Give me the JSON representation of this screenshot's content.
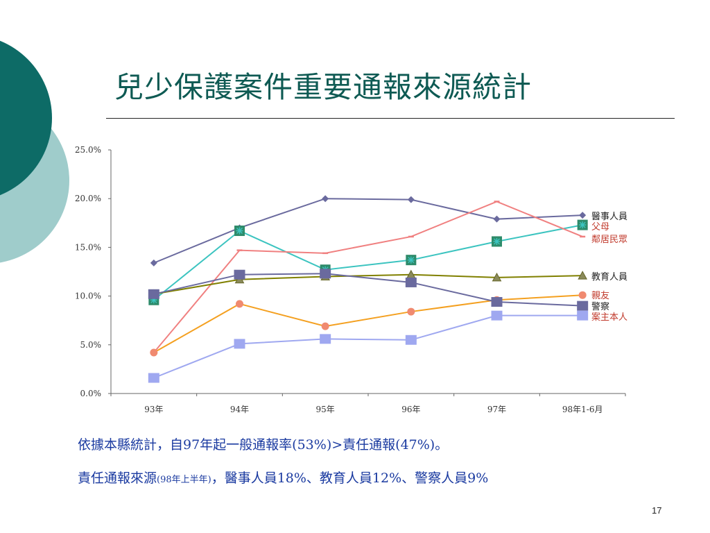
{
  "slide": {
    "title": "兒少保護案件重要通報來源統計",
    "notes": {
      "line1": "依據本縣統計，自97年起一般通報率(53%)>責任通報(47%)。",
      "line2_prefix": "責任通報來源",
      "line2_small": "(98年上半年)",
      "line2_suffix": "，醫事人員18%、教育人員12%、警察人員9%"
    },
    "page_number": "17",
    "colors": {
      "title": "#0e5a53",
      "notes": "#1a3aa0",
      "deco_dark": "#0d6b66",
      "deco_light": "#9fcccb"
    }
  },
  "chart_data": {
    "type": "line",
    "categories": [
      "93年",
      "94年",
      "95年",
      "96年",
      "97年",
      "98年1-6月"
    ],
    "ylim": [
      0,
      25
    ],
    "y_ticks": [
      "0.0%",
      "5.0%",
      "10.0%",
      "15.0%",
      "20.0%",
      "25.0%"
    ],
    "grid": false,
    "legend_position": "right, next to line ends",
    "series": [
      {
        "name": "醫事人員",
        "color": "#6a6a9e",
        "marker": "diamond",
        "label_color": "#222222",
        "values": [
          13.4,
          17.0,
          20.0,
          19.9,
          17.9,
          18.3
        ]
      },
      {
        "name": "父母",
        "color": "#3cc4c0",
        "marker": "star",
        "label_color": "#c0392b",
        "values": [
          9.6,
          16.7,
          12.7,
          13.7,
          15.6,
          17.3
        ]
      },
      {
        "name": "鄰居民眾",
        "color": "#f08080",
        "marker": "dash",
        "label_color": "#c0392b",
        "values": [
          4.2,
          14.7,
          14.4,
          16.1,
          19.7,
          16.1
        ]
      },
      {
        "name": "教育人員",
        "color": "#808000",
        "marker": "triangle",
        "label_color": "#222222",
        "values": [
          10.2,
          11.7,
          12.0,
          12.2,
          11.9,
          12.1
        ]
      },
      {
        "name": "親友",
        "color": "#f4a020",
        "marker": "circle",
        "label_color": "#c0392b",
        "values": [
          4.2,
          9.2,
          6.9,
          8.4,
          9.6,
          10.1
        ]
      },
      {
        "name": "警察",
        "color": "#6a6a9e",
        "marker": "square",
        "label_color": "#222222",
        "values": [
          10.2,
          12.2,
          12.3,
          11.4,
          9.4,
          9.0
        ]
      },
      {
        "name": "案主本人",
        "color": "#9fa8f0",
        "marker": "square-light",
        "label_color": "#c0392b",
        "values": [
          1.6,
          5.1,
          5.6,
          5.5,
          8.0,
          8.0
        ]
      }
    ]
  }
}
